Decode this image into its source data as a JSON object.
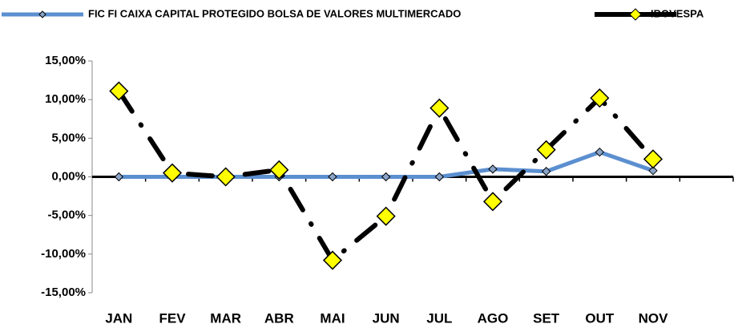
{
  "chart_data": {
    "type": "line",
    "categories": [
      "JAN",
      "FEV",
      "MAR",
      "ABR",
      "MAI",
      "JUN",
      "JUL",
      "AGO",
      "SET",
      "OUT",
      "NOV",
      null
    ],
    "series": [
      {
        "name": "FIC FI CAIXA CAPITAL PROTEGIDO BOLSA DE VALORES MULTIMERCADO",
        "color": "#5b8fd0",
        "marker_color": "#8aa4c8",
        "values": [
          0,
          0,
          0,
          0,
          0,
          0,
          0,
          1.0,
          0.7,
          3.2,
          0.8,
          null
        ]
      },
      {
        "name": "IBOVESPA",
        "color": "#000000",
        "marker_color": "#ffff00",
        "values": [
          11.1,
          0.5,
          0,
          0.9,
          -10.8,
          -5.1,
          8.9,
          -3.2,
          3.5,
          10.2,
          2.3,
          null
        ]
      }
    ],
    "ylim": [
      -15,
      15
    ],
    "yticks": [
      {
        "value": -15,
        "label": "-15,00%"
      },
      {
        "value": -10,
        "label": "-10,00%"
      },
      {
        "value": -5,
        "label": "-5,00%"
      },
      {
        "value": 0,
        "label": "0,00%"
      },
      {
        "value": 5,
        "label": "5,00%"
      },
      {
        "value": 10,
        "label": "10,00%"
      },
      {
        "value": 15,
        "label": "15,00%"
      }
    ],
    "legend": "top",
    "grid": false
  }
}
